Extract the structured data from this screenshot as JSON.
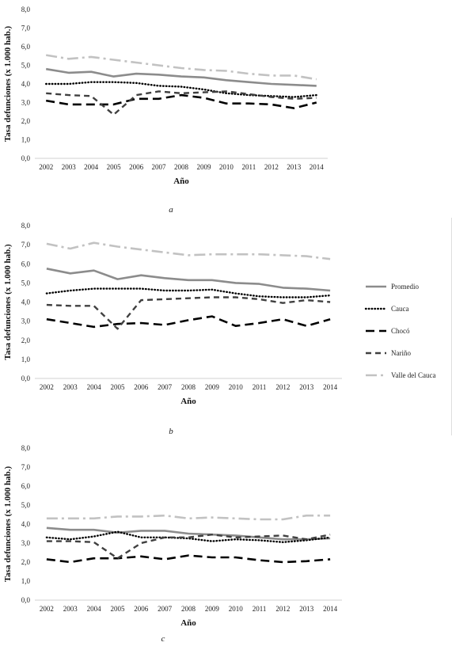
{
  "colors": {
    "Promedio": "#8c8c8c",
    "Cauca": "#000000",
    "Chocó": "#000000",
    "Nariño": "#404040",
    "Valle del Cauca": "#c2c2c2"
  },
  "legend": [
    "Promedio",
    "Cauca",
    "Chocó",
    "Nariño",
    "Valle del Cauca"
  ],
  "chart_data": [
    {
      "type": "line",
      "caption": "a",
      "xlabel": "Año",
      "ylabel": "Tasa defunciones (x 1.000 hab.)",
      "ylim": [
        0,
        8
      ],
      "yticks": [
        "0,0",
        "1,0",
        "2,0",
        "3,0",
        "4,0",
        "5,0",
        "6,0",
        "7,0",
        "8,0"
      ],
      "x": [
        "2002",
        "2003",
        "2004",
        "2005",
        "2006",
        "2007",
        "2008",
        "2009",
        "2010",
        "2011",
        "2012",
        "2013",
        "2014"
      ],
      "series": [
        {
          "name": "Promedio",
          "values": [
            4.8,
            4.6,
            4.65,
            4.4,
            4.55,
            4.5,
            4.4,
            4.35,
            4.2,
            4.1,
            4.0,
            3.95,
            3.9
          ]
        },
        {
          "name": "Cauca",
          "values": [
            4.0,
            4.0,
            4.1,
            4.1,
            4.05,
            3.9,
            3.85,
            3.7,
            3.5,
            3.4,
            3.35,
            3.3,
            3.4
          ]
        },
        {
          "name": "Chocó",
          "values": [
            3.1,
            2.9,
            2.9,
            2.9,
            3.2,
            3.2,
            3.4,
            3.25,
            2.95,
            2.95,
            2.9,
            2.7,
            3.0
          ]
        },
        {
          "name": "Nariño",
          "values": [
            3.5,
            3.4,
            3.35,
            2.35,
            3.4,
            3.6,
            3.5,
            3.55,
            3.6,
            3.45,
            3.3,
            3.2,
            3.25
          ]
        },
        {
          "name": "Valle del Cauca",
          "values": [
            5.55,
            5.35,
            5.45,
            5.3,
            5.15,
            5.0,
            4.85,
            4.75,
            4.7,
            4.55,
            4.45,
            4.45,
            4.25
          ]
        }
      ]
    },
    {
      "type": "line",
      "caption": "b",
      "xlabel": "Año",
      "ylabel": "Tasa defunciones (x 1.000 hab.)",
      "ylim": [
        0,
        8
      ],
      "yticks": [
        "0,0",
        "1,0",
        "2,0",
        "3,0",
        "4,0",
        "5,0",
        "6,0",
        "7,0",
        "8,0"
      ],
      "x": [
        "2002",
        "2003",
        "2004",
        "2005",
        "2006",
        "2007",
        "2008",
        "2009",
        "2010",
        "2011",
        "2012",
        "2013",
        "2014"
      ],
      "series": [
        {
          "name": "Promedio",
          "values": [
            5.75,
            5.5,
            5.65,
            5.2,
            5.4,
            5.25,
            5.15,
            5.15,
            5.0,
            4.95,
            4.75,
            4.7,
            4.6
          ]
        },
        {
          "name": "Cauca",
          "values": [
            4.45,
            4.6,
            4.7,
            4.7,
            4.7,
            4.6,
            4.6,
            4.65,
            4.45,
            4.3,
            4.25,
            4.25,
            4.35
          ]
        },
        {
          "name": "Chocó",
          "values": [
            3.1,
            2.9,
            2.7,
            2.85,
            2.9,
            2.8,
            3.05,
            3.25,
            2.75,
            2.9,
            3.1,
            2.75,
            3.1
          ]
        },
        {
          "name": "Nariño",
          "values": [
            3.85,
            3.8,
            3.8,
            2.6,
            4.1,
            4.15,
            4.2,
            4.25,
            4.25,
            4.15,
            3.95,
            4.1,
            4.0
          ]
        },
        {
          "name": "Valle del Cauca",
          "values": [
            7.05,
            6.8,
            7.1,
            6.9,
            6.75,
            6.6,
            6.45,
            6.5,
            6.5,
            6.5,
            6.45,
            6.4,
            6.25
          ]
        }
      ]
    },
    {
      "type": "line",
      "caption": "c",
      "xlabel": "Año",
      "ylabel": "Tasa defunciones (x 1.000 hab.)",
      "ylim": [
        0,
        8
      ],
      "yticks": [
        "0,0",
        "1,0",
        "2,0",
        "3,0",
        "4,0",
        "5,0",
        "6,0",
        "7,0",
        "8,0"
      ],
      "x": [
        "2002",
        "2003",
        "2004",
        "2005",
        "2006",
        "2007",
        "2008",
        "2009",
        "2010",
        "2011",
        "2012",
        "2013",
        "2014"
      ],
      "series": [
        {
          "name": "Promedio",
          "values": [
            3.8,
            3.7,
            3.7,
            3.55,
            3.65,
            3.65,
            3.5,
            3.45,
            3.4,
            3.3,
            3.2,
            3.2,
            3.25
          ]
        },
        {
          "name": "Cauca",
          "values": [
            3.3,
            3.2,
            3.35,
            3.6,
            3.3,
            3.3,
            3.25,
            3.1,
            3.2,
            3.15,
            3.05,
            3.15,
            3.3
          ]
        },
        {
          "name": "Chocó",
          "values": [
            2.15,
            2.0,
            2.2,
            2.2,
            2.3,
            2.15,
            2.35,
            2.25,
            2.25,
            2.1,
            2.0,
            2.05,
            2.15
          ]
        },
        {
          "name": "Nariño",
          "values": [
            3.1,
            3.1,
            3.05,
            2.2,
            3.0,
            3.3,
            3.3,
            3.45,
            3.3,
            3.35,
            3.4,
            3.2,
            3.45
          ]
        },
        {
          "name": "Valle del Cauca",
          "values": [
            4.3,
            4.3,
            4.3,
            4.4,
            4.4,
            4.45,
            4.3,
            4.35,
            4.3,
            4.25,
            4.25,
            4.45,
            4.45
          ]
        }
      ]
    }
  ]
}
